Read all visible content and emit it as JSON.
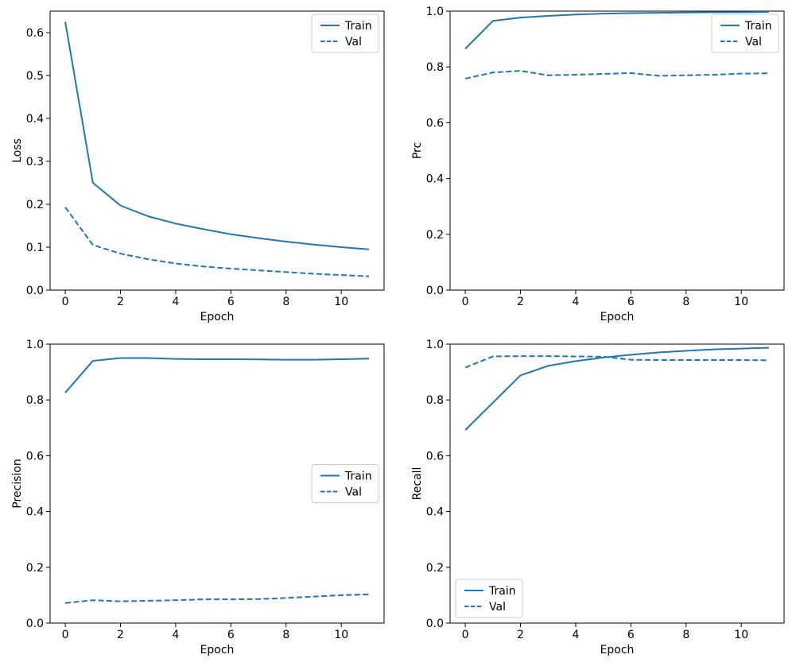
{
  "figure": {
    "background": "#ffffff",
    "line_color": "#1f77b4",
    "axis_color": "#000000",
    "legend_border_color": "#cccccc",
    "legend_labels": [
      "Train",
      "Val"
    ]
  },
  "chart_data": [
    {
      "id": "loss",
      "type": "line",
      "title": "",
      "xlabel": "Epoch",
      "ylabel": "Loss",
      "x": [
        0,
        1,
        2,
        3,
        4,
        5,
        6,
        7,
        8,
        9,
        10,
        11
      ],
      "series": [
        {
          "name": "Train",
          "dash": false,
          "values": [
            0.625,
            0.25,
            0.197,
            0.172,
            0.155,
            0.142,
            0.13,
            0.121,
            0.113,
            0.106,
            0.1,
            0.095
          ]
        },
        {
          "name": "Val",
          "dash": true,
          "values": [
            0.193,
            0.105,
            0.085,
            0.072,
            0.062,
            0.055,
            0.05,
            0.046,
            0.042,
            0.038,
            0.035,
            0.032
          ]
        }
      ],
      "xlim": [
        -0.55,
        11.55
      ],
      "ylim": [
        0.0,
        0.65
      ],
      "xticks": [
        "0",
        "2",
        "4",
        "6",
        "8",
        "10"
      ],
      "yticks": [
        "0.0",
        "0.1",
        "0.2",
        "0.3",
        "0.4",
        "0.5",
        "0.6"
      ],
      "grid": false,
      "legend_loc": "upper-right"
    },
    {
      "id": "prc",
      "type": "line",
      "title": "",
      "xlabel": "Epoch",
      "ylabel": "Prc",
      "x": [
        0,
        1,
        2,
        3,
        4,
        5,
        6,
        7,
        8,
        9,
        10,
        11
      ],
      "series": [
        {
          "name": "Train",
          "dash": false,
          "values": [
            0.865,
            0.965,
            0.977,
            0.983,
            0.988,
            0.991,
            0.993,
            0.994,
            0.995,
            0.996,
            0.996,
            0.997
          ]
        },
        {
          "name": "Val",
          "dash": true,
          "values": [
            0.758,
            0.78,
            0.786,
            0.77,
            0.772,
            0.775,
            0.778,
            0.768,
            0.77,
            0.772,
            0.776,
            0.777
          ]
        }
      ],
      "xlim": [
        -0.55,
        11.55
      ],
      "ylim": [
        0.0,
        1.0
      ],
      "xticks": [
        "0",
        "2",
        "4",
        "6",
        "8",
        "10"
      ],
      "yticks": [
        "0.0",
        "0.2",
        "0.4",
        "0.6",
        "0.8",
        "1.0"
      ],
      "grid": false,
      "legend_loc": "upper-right"
    },
    {
      "id": "precision",
      "type": "line",
      "title": "",
      "xlabel": "Epoch",
      "ylabel": "Precision",
      "x": [
        0,
        1,
        2,
        3,
        4,
        5,
        6,
        7,
        8,
        9,
        10,
        11
      ],
      "series": [
        {
          "name": "Train",
          "dash": false,
          "values": [
            0.826,
            0.94,
            0.95,
            0.95,
            0.947,
            0.946,
            0.946,
            0.945,
            0.944,
            0.944,
            0.946,
            0.948
          ]
        },
        {
          "name": "Val",
          "dash": true,
          "values": [
            0.072,
            0.082,
            0.078,
            0.08,
            0.082,
            0.085,
            0.085,
            0.086,
            0.09,
            0.095,
            0.1,
            0.103
          ]
        }
      ],
      "xlim": [
        -0.55,
        11.55
      ],
      "ylim": [
        0.0,
        1.0
      ],
      "xticks": [
        "0",
        "2",
        "4",
        "6",
        "8",
        "10"
      ],
      "yticks": [
        "0.0",
        "0.2",
        "0.4",
        "0.6",
        "0.8",
        "1.0"
      ],
      "grid": false,
      "legend_loc": "center-right"
    },
    {
      "id": "recall",
      "type": "line",
      "title": "",
      "xlabel": "Epoch",
      "ylabel": "Recall",
      "x": [
        0,
        1,
        2,
        3,
        4,
        5,
        6,
        7,
        8,
        9,
        10,
        11
      ],
      "series": [
        {
          "name": "Train",
          "dash": false,
          "values": [
            0.692,
            0.79,
            0.888,
            0.922,
            0.939,
            0.952,
            0.962,
            0.97,
            0.976,
            0.981,
            0.984,
            0.987
          ]
        },
        {
          "name": "Val",
          "dash": true,
          "values": [
            0.916,
            0.956,
            0.957,
            0.957,
            0.956,
            0.955,
            0.944,
            0.943,
            0.943,
            0.943,
            0.943,
            0.942
          ]
        }
      ],
      "xlim": [
        -0.55,
        11.55
      ],
      "ylim": [
        0.0,
        1.0
      ],
      "xticks": [
        "0",
        "2",
        "4",
        "6",
        "8",
        "10"
      ],
      "yticks": [
        "0.0",
        "0.2",
        "0.4",
        "0.6",
        "0.8",
        "1.0"
      ],
      "grid": false,
      "legend_loc": "lower-left"
    }
  ]
}
